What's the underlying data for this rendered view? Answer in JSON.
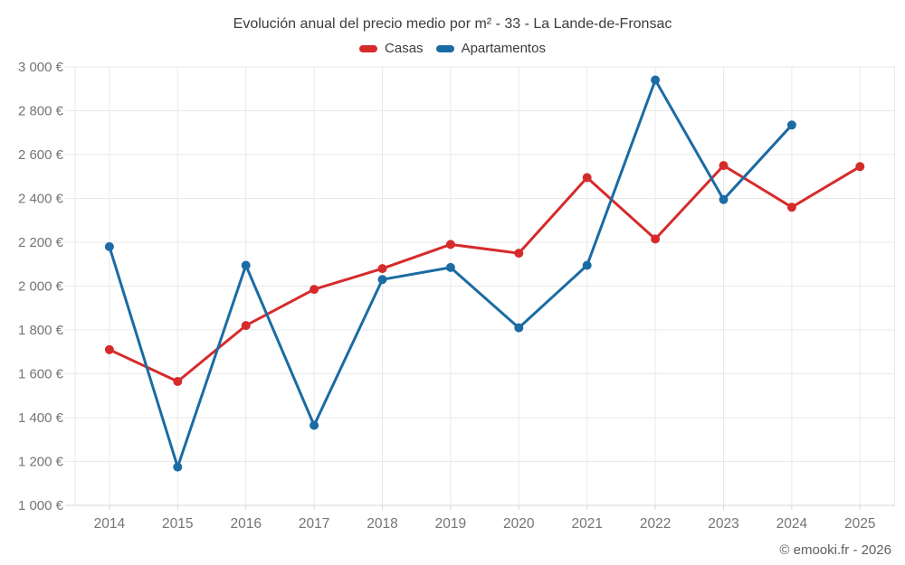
{
  "chart_data": {
    "type": "line",
    "title": "Evolución anual del precio medio por m² - 33 - La Lande-de-Fronsac",
    "x": [
      "2014",
      "2015",
      "2016",
      "2017",
      "2018",
      "2019",
      "2020",
      "2021",
      "2022",
      "2023",
      "2024",
      "2025"
    ],
    "series": [
      {
        "name": "Casas",
        "color": "#d62b2b",
        "values": [
          1710,
          1565,
          1820,
          1985,
          2080,
          2190,
          2150,
          2495,
          2215,
          2550,
          2360,
          2545
        ]
      },
      {
        "name": "Apartamentos",
        "color": "#1b6ba4",
        "values": [
          2180,
          1175,
          2095,
          1365,
          2030,
          2085,
          1810,
          2095,
          2940,
          2395,
          2735,
          null
        ]
      }
    ],
    "ylim": [
      1000,
      3000
    ],
    "ytick_step": 200,
    "ytick_labels": [
      "1 000 €",
      "1 200 €",
      "1 400 €",
      "1 600 €",
      "1 800 €",
      "2 000 €",
      "2 200 €",
      "2 400 €",
      "2 600 €",
      "2 800 €",
      "3 000 €"
    ],
    "currency": "€",
    "grid": true,
    "legend_position": "top",
    "attribution": "© emooki.fr - 2026",
    "colors": {
      "grid": "#e9e9e9",
      "axis": "#d4d4d4",
      "tick_text": "#757575",
      "title_text": "#3c3c3c"
    }
  }
}
